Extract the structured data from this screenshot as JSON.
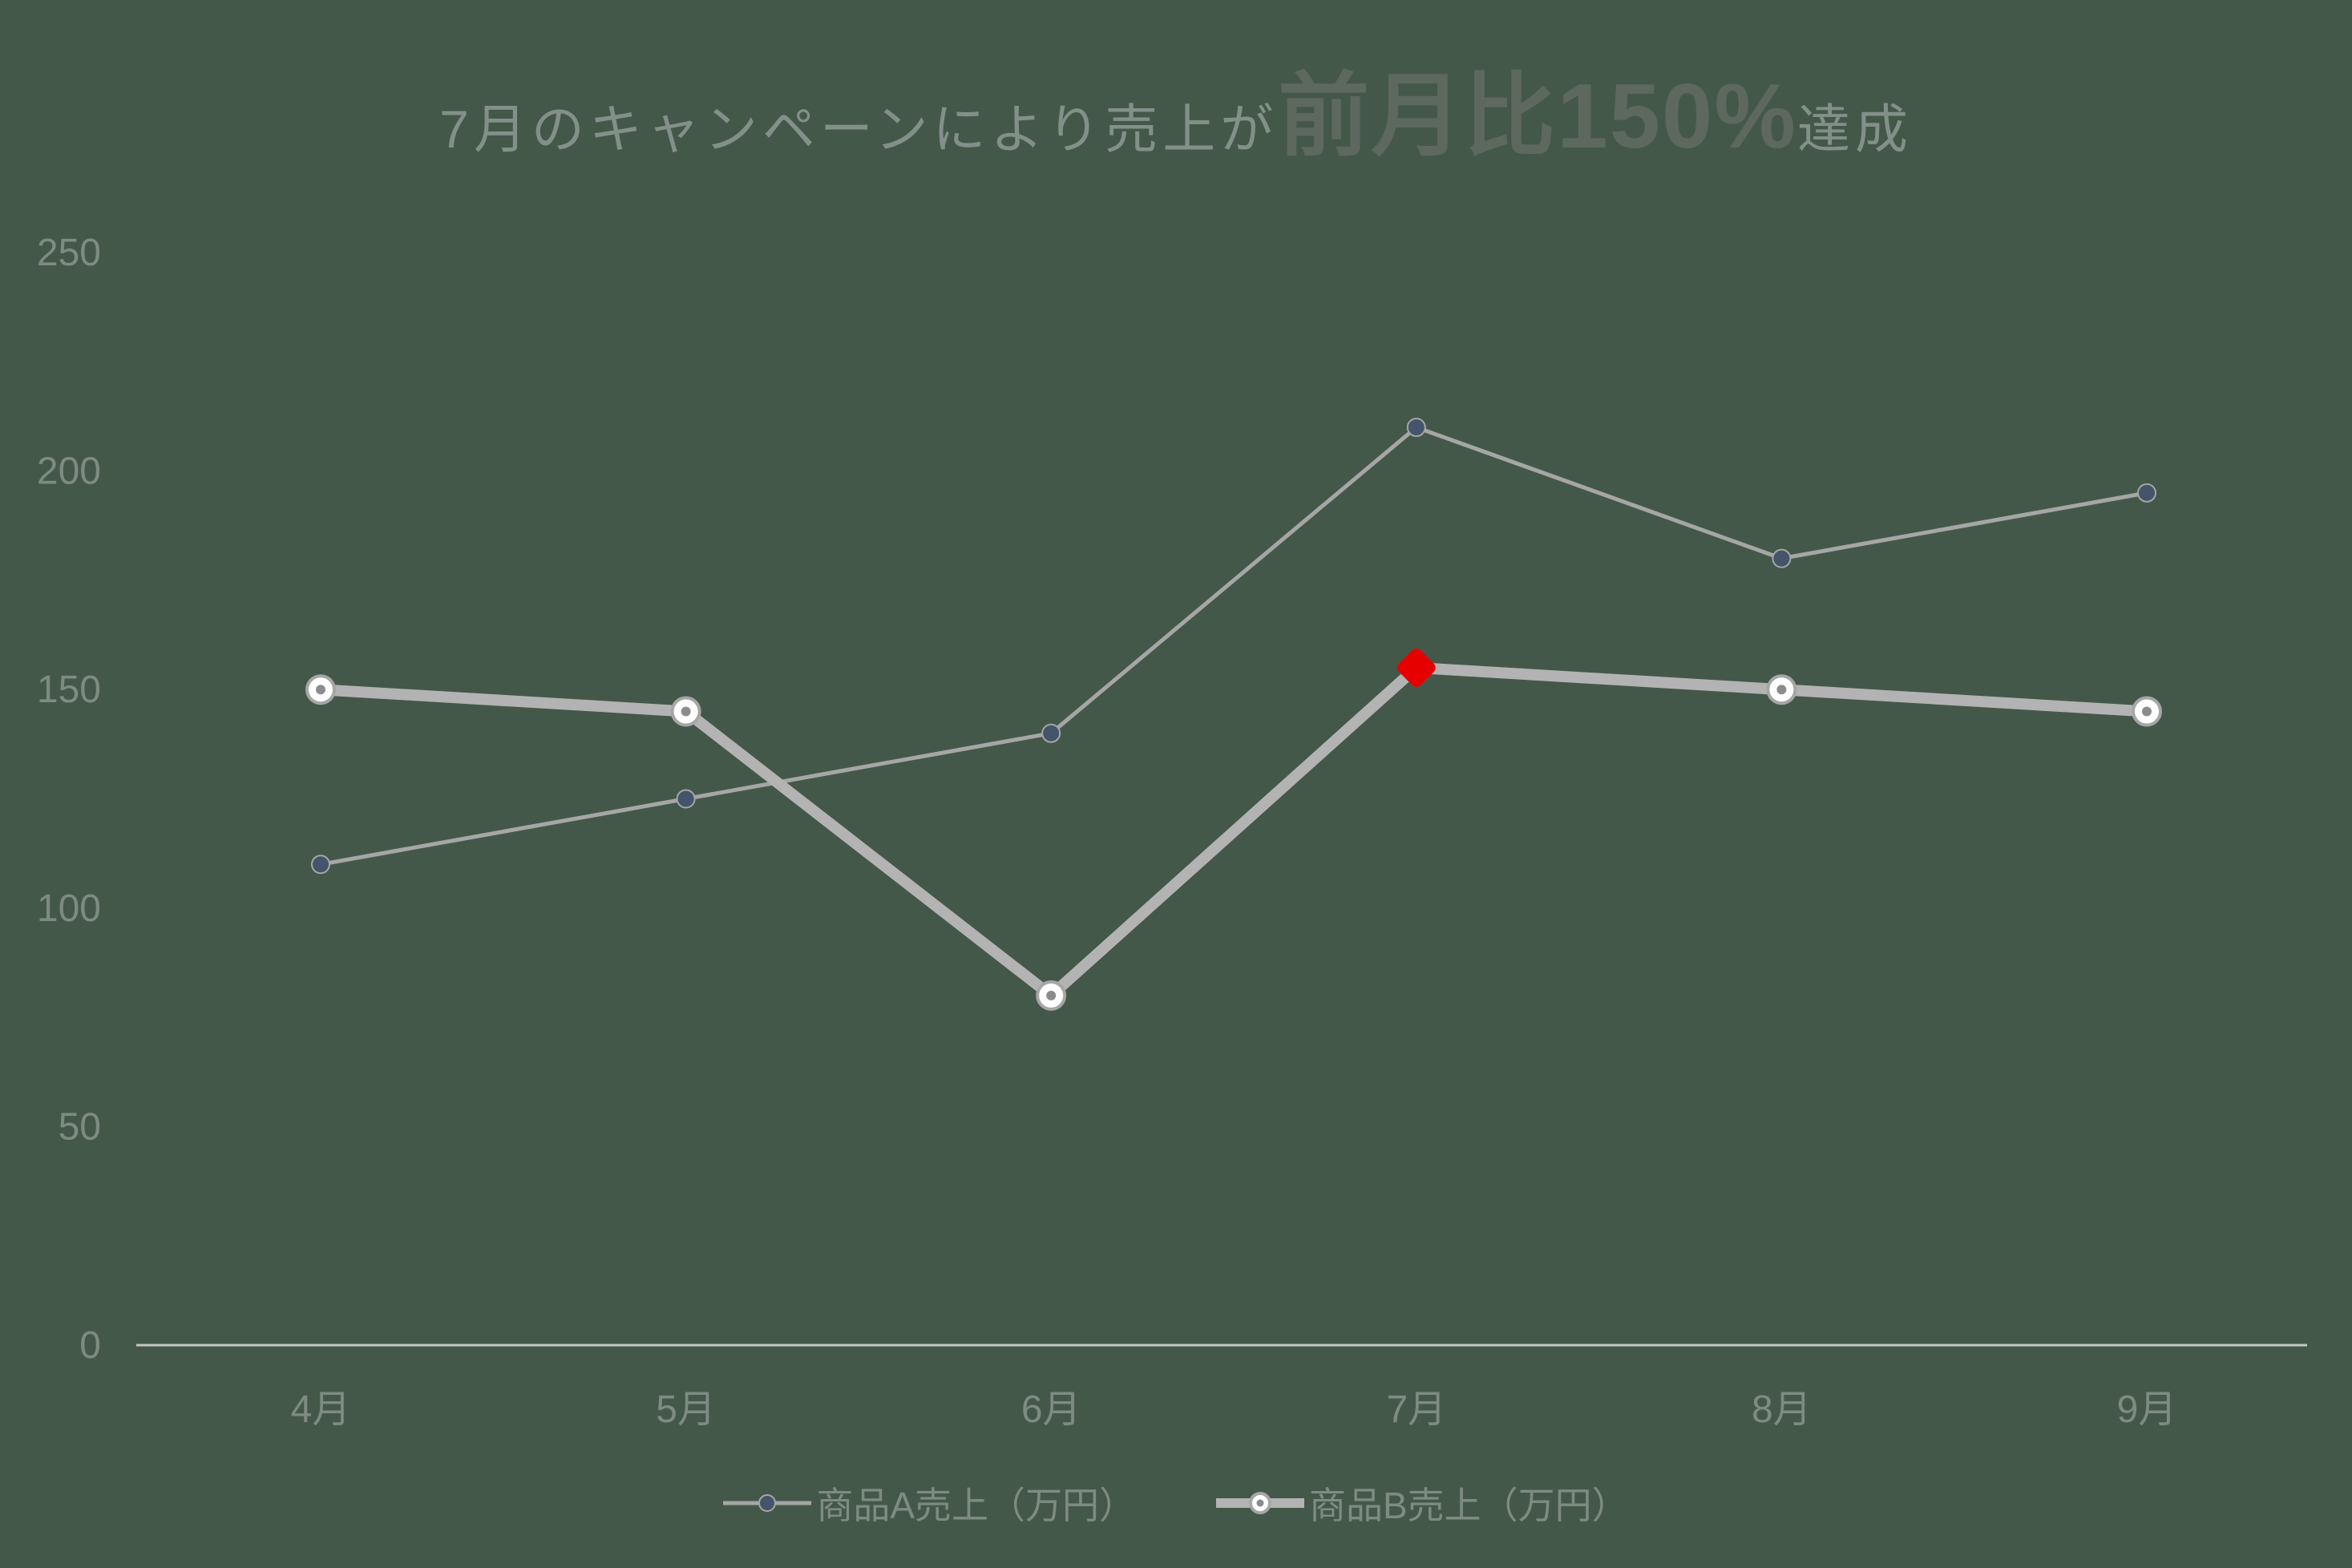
{
  "colors": {
    "background": "#44584a",
    "title_text": "#83908a",
    "title_emphasis": "#5d685f",
    "axis_text": "#7e8b83",
    "axis_line": "#c2c8c3",
    "series_a_line": "#a6a6a6",
    "series_a_marker": "#44546a",
    "series_b_line": "#b3b3b3",
    "series_b_marker_fill": "#ffffff",
    "series_b_marker_dot": "#8c8c8c"
  },
  "chart_data": {
    "type": "line",
    "title": {
      "prefix": "7月のキャンペーンにより売上が",
      "emphasis": "前月比150%",
      "suffix": "達成"
    },
    "categories": [
      "4月",
      "5月",
      "6月",
      "7月",
      "8月",
      "9月"
    ],
    "series": [
      {
        "name": "商品A売上（万円）",
        "values": [
          110,
          125,
          140,
          210,
          180,
          195
        ]
      },
      {
        "name": "商品B売上（万円）",
        "values": [
          150,
          145,
          80,
          155,
          150,
          145
        ]
      }
    ],
    "y_axis": {
      "min": 0,
      "max": 250,
      "ticks": [
        0,
        50,
        100,
        150,
        200,
        250
      ]
    },
    "grid": false,
    "legend_position": "bottom",
    "highlight": {
      "series": "商品B売上（万円）",
      "category": "7月",
      "value": 155,
      "shape": "diamond",
      "color": "#e60000"
    }
  }
}
